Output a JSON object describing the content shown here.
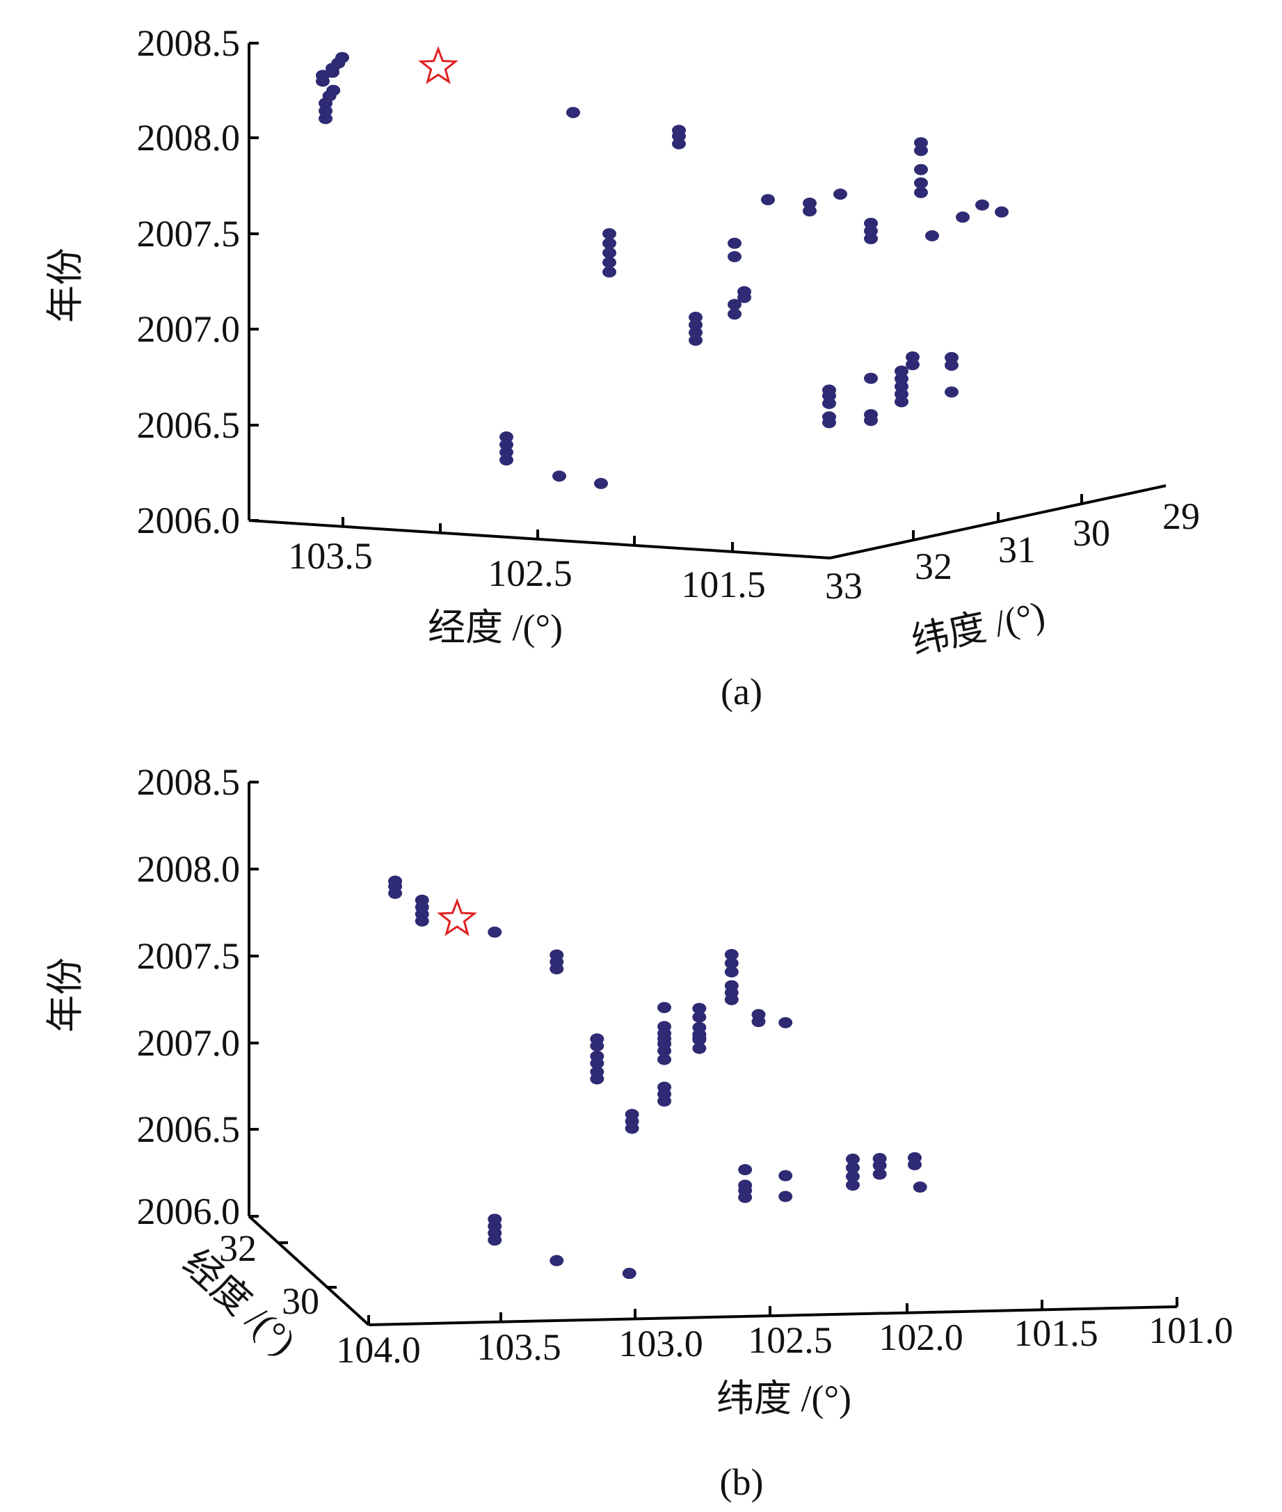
{
  "chart_data": [
    {
      "type": "scatter",
      "caption": "(a)",
      "zlabel": "年份",
      "xlabel": "经度 /(°)",
      "ylabel": "纬度 /(°)",
      "z_ticks": [
        "2006.0",
        "2006.5",
        "2007.0",
        "2007.5",
        "2008.0",
        "2008.5"
      ],
      "x_ticks": [
        "103.5",
        "102.5",
        "101.5"
      ],
      "y_ticks": [
        "33",
        "32",
        "31",
        "30",
        "29"
      ],
      "zlim": [
        2006.0,
        2008.5
      ],
      "marker_color": "#2e2a73",
      "star_color": "#e02020",
      "series": [
        {
          "points": [
            {
              "x": 103.9,
              "y": 31.1,
              "z": 2008.05
            },
            {
              "x": 103.9,
              "y": 31.1,
              "z": 2008.08
            },
            {
              "x": 103.85,
              "y": 31.1,
              "z": 2008.1
            },
            {
              "x": 103.85,
              "y": 31.1,
              "z": 2008.12
            },
            {
              "x": 103.82,
              "y": 31.1,
              "z": 2008.15
            },
            {
              "x": 103.8,
              "y": 31.1,
              "z": 2008.18
            },
            {
              "x": 103.8,
              "y": 31.3,
              "z": 2007.88
            },
            {
              "x": 103.8,
              "y": 31.3,
              "z": 2007.92
            },
            {
              "x": 103.8,
              "y": 31.3,
              "z": 2007.96
            },
            {
              "x": 103.78,
              "y": 31.3,
              "z": 2008.0
            },
            {
              "x": 103.76,
              "y": 31.3,
              "z": 2008.03
            },
            {
              "x": 103.0,
              "y": 30.2,
              "z": 2007.86
            },
            {
              "x": 102.5,
              "y": 30.1,
              "z": 2007.72
            },
            {
              "x": 102.5,
              "y": 30.1,
              "z": 2007.76
            },
            {
              "x": 102.5,
              "y": 30.1,
              "z": 2007.79
            },
            {
              "x": 102.0,
              "y": 30.2,
              "z": 2007.47
            },
            {
              "x": 101.7,
              "y": 30.4,
              "z": 2007.45
            },
            {
              "x": 101.7,
              "y": 30.4,
              "z": 2007.49
            },
            {
              "x": 101.5,
              "y": 30.5,
              "z": 2007.56
            },
            {
              "x": 101.3,
              "y": 30.6,
              "z": 2007.35
            },
            {
              "x": 101.3,
              "y": 30.6,
              "z": 2007.39
            },
            {
              "x": 101.3,
              "y": 30.6,
              "z": 2007.43
            },
            {
              "x": 101.0,
              "y": 30.7,
              "z": 2007.62
            },
            {
              "x": 101.0,
              "y": 30.7,
              "z": 2007.67
            },
            {
              "x": 101.0,
              "y": 30.7,
              "z": 2007.74
            },
            {
              "x": 101.0,
              "y": 30.7,
              "z": 2007.84
            },
            {
              "x": 101.0,
              "y": 30.7,
              "z": 2007.88
            },
            {
              "x": 100.9,
              "y": 30.8,
              "z": 2007.41
            },
            {
              "x": 100.7,
              "y": 30.9,
              "z": 2007.53
            },
            {
              "x": 100.6,
              "y": 30.9,
              "z": 2007.6
            },
            {
              "x": 100.5,
              "y": 30.9,
              "z": 2007.57
            },
            {
              "x": 102.6,
              "y": 30.7,
              "z": 2007.1
            },
            {
              "x": 102.6,
              "y": 30.7,
              "z": 2007.15
            },
            {
              "x": 102.6,
              "y": 30.7,
              "z": 2007.2
            },
            {
              "x": 102.6,
              "y": 30.7,
              "z": 2007.25
            },
            {
              "x": 102.6,
              "y": 30.7,
              "z": 2007.3
            },
            {
              "x": 102.2,
              "y": 30.6,
              "z": 2006.76
            },
            {
              "x": 102.2,
              "y": 30.6,
              "z": 2006.8
            },
            {
              "x": 102.2,
              "y": 30.6,
              "z": 2006.84
            },
            {
              "x": 102.2,
              "y": 30.6,
              "z": 2006.88
            },
            {
              "x": 102.0,
              "y": 30.6,
              "z": 2007.28
            },
            {
              "x": 102.0,
              "y": 30.6,
              "z": 2007.21
            },
            {
              "x": 102.0,
              "y": 30.6,
              "z": 2006.91
            },
            {
              "x": 102.0,
              "y": 30.6,
              "z": 2006.96
            },
            {
              "x": 101.95,
              "y": 30.6,
              "z": 2007.0
            },
            {
              "x": 101.95,
              "y": 30.6,
              "z": 2007.03
            },
            {
              "x": 101.6,
              "y": 30.4,
              "z": 2006.35
            },
            {
              "x": 101.6,
              "y": 30.4,
              "z": 2006.38
            },
            {
              "x": 101.6,
              "y": 30.4,
              "z": 2006.45
            },
            {
              "x": 101.6,
              "y": 30.4,
              "z": 2006.49
            },
            {
              "x": 101.6,
              "y": 30.4,
              "z": 2006.52
            },
            {
              "x": 101.3,
              "y": 30.6,
              "z": 2006.4
            },
            {
              "x": 101.3,
              "y": 30.6,
              "z": 2006.43
            },
            {
              "x": 101.3,
              "y": 30.6,
              "z": 2006.62
            },
            {
              "x": 101.1,
              "y": 30.7,
              "z": 2006.52
            },
            {
              "x": 101.1,
              "y": 30.7,
              "z": 2006.56
            },
            {
              "x": 101.1,
              "y": 30.7,
              "z": 2006.6
            },
            {
              "x": 101.1,
              "y": 30.7,
              "z": 2006.64
            },
            {
              "x": 101.1,
              "y": 30.7,
              "z": 2006.68
            },
            {
              "x": 101.0,
              "y": 30.8,
              "z": 2006.73
            },
            {
              "x": 101.0,
              "y": 30.8,
              "z": 2006.77
            },
            {
              "x": 100.8,
              "y": 30.8,
              "z": 2006.74
            },
            {
              "x": 100.8,
              "y": 30.8,
              "z": 2006.78
            },
            {
              "x": 100.8,
              "y": 30.8,
              "z": 2006.6
            },
            {
              "x": 103.0,
              "y": 31.0,
              "z": 2006.12
            },
            {
              "x": 103.0,
              "y": 31.0,
              "z": 2006.16
            },
            {
              "x": 103.0,
              "y": 31.0,
              "z": 2006.2
            },
            {
              "x": 103.0,
              "y": 31.0,
              "z": 2006.24
            },
            {
              "x": 102.6,
              "y": 31.3,
              "z": 2006.09
            },
            {
              "x": 102.3,
              "y": 31.5,
              "z": 2006.09
            }
          ]
        }
      ],
      "highlight": {
        "marker": "star",
        "x": 103.35,
        "y": 31.0,
        "z": 2008.15
      }
    },
    {
      "type": "scatter",
      "caption": "(b)",
      "zlabel": "年份",
      "xlabel": "纬度 /(°)",
      "ylabel": "经度 /(°)",
      "z_ticks": [
        "2006.0",
        "2006.5",
        "2007.0",
        "2007.5",
        "2008.0",
        "2008.5"
      ],
      "x_ticks": [
        "104.0",
        "103.5",
        "103.0",
        "102.5",
        "102.0",
        "101.5",
        "101.0"
      ],
      "y_ticks": [
        "30",
        "32"
      ],
      "zlim": [
        2006.0,
        2008.5
      ],
      "marker_color": "#2e2a73",
      "star_color": "#e02020",
      "series": [
        {
          "points": [
            {
              "x": 103.85,
              "y": 31.1,
              "z": 2007.87
            },
            {
              "x": 103.85,
              "y": 31.1,
              "z": 2007.91
            },
            {
              "x": 103.85,
              "y": 31.1,
              "z": 2007.94
            },
            {
              "x": 103.75,
              "y": 31.2,
              "z": 2007.71
            },
            {
              "x": 103.75,
              "y": 31.2,
              "z": 2007.75
            },
            {
              "x": 103.75,
              "y": 31.2,
              "z": 2007.79
            },
            {
              "x": 103.75,
              "y": 31.2,
              "z": 2007.83
            },
            {
              "x": 103.48,
              "y": 31.0,
              "z": 2007.63
            },
            {
              "x": 103.25,
              "y": 31.0,
              "z": 2007.41
            },
            {
              "x": 103.25,
              "y": 31.0,
              "z": 2007.45
            },
            {
              "x": 103.25,
              "y": 31.0,
              "z": 2007.49
            },
            {
              "x": 102.6,
              "y": 30.7,
              "z": 2007.36
            },
            {
              "x": 102.6,
              "y": 30.7,
              "z": 2007.41
            },
            {
              "x": 102.6,
              "y": 30.7,
              "z": 2007.46
            },
            {
              "x": 102.6,
              "y": 30.7,
              "z": 2007.2
            },
            {
              "x": 102.6,
              "y": 30.7,
              "z": 2007.24
            },
            {
              "x": 102.6,
              "y": 30.7,
              "z": 2007.28
            },
            {
              "x": 102.5,
              "y": 30.7,
              "z": 2007.07
            },
            {
              "x": 102.5,
              "y": 30.7,
              "z": 2007.11
            },
            {
              "x": 102.4,
              "y": 30.7,
              "z": 2007.06
            },
            {
              "x": 102.85,
              "y": 30.6,
              "z": 2006.95
            },
            {
              "x": 102.85,
              "y": 30.6,
              "z": 2006.98
            },
            {
              "x": 102.85,
              "y": 30.6,
              "z": 2007.01
            },
            {
              "x": 102.85,
              "y": 30.6,
              "z": 2007.05
            },
            {
              "x": 102.85,
              "y": 30.6,
              "z": 2007.16
            },
            {
              "x": 102.72,
              "y": 30.6,
              "z": 2007.1
            },
            {
              "x": 102.72,
              "y": 30.6,
              "z": 2007.15
            },
            {
              "x": 102.72,
              "y": 30.6,
              "z": 2007.04
            },
            {
              "x": 102.72,
              "y": 30.6,
              "z": 2007.0
            },
            {
              "x": 102.72,
              "y": 30.6,
              "z": 2006.97
            },
            {
              "x": 103.1,
              "y": 31.0,
              "z": 2006.77
            },
            {
              "x": 103.1,
              "y": 31.0,
              "z": 2006.81
            },
            {
              "x": 103.1,
              "y": 31.0,
              "z": 2006.86
            },
            {
              "x": 103.1,
              "y": 31.0,
              "z": 2006.9
            },
            {
              "x": 103.1,
              "y": 31.0,
              "z": 2006.96
            },
            {
              "x": 103.1,
              "y": 31.0,
              "z": 2007.0
            },
            {
              "x": 102.97,
              "y": 31.0,
              "z": 2006.48
            },
            {
              "x": 102.97,
              "y": 31.0,
              "z": 2006.52
            },
            {
              "x": 102.97,
              "y": 31.0,
              "z": 2006.56
            },
            {
              "x": 102.85,
              "y": 30.6,
              "z": 2006.62
            },
            {
              "x": 102.85,
              "y": 30.6,
              "z": 2006.66
            },
            {
              "x": 102.85,
              "y": 30.6,
              "z": 2006.7
            },
            {
              "x": 102.85,
              "y": 30.6,
              "z": 2006.86
            },
            {
              "x": 102.85,
              "y": 30.6,
              "z": 2006.91
            },
            {
              "x": 102.72,
              "y": 30.6,
              "z": 2006.92
            },
            {
              "x": 102.72,
              "y": 30.6,
              "z": 2006.98
            },
            {
              "x": 102.55,
              "y": 30.8,
              "z": 2006.06
            },
            {
              "x": 102.55,
              "y": 30.8,
              "z": 2006.1
            },
            {
              "x": 102.55,
              "y": 30.8,
              "z": 2006.13
            },
            {
              "x": 102.55,
              "y": 30.8,
              "z": 2006.22
            },
            {
              "x": 102.4,
              "y": 30.8,
              "z": 2006.06
            },
            {
              "x": 102.4,
              "y": 30.8,
              "z": 2006.18
            },
            {
              "x": 102.15,
              "y": 30.9,
              "z": 2006.12
            },
            {
              "x": 102.15,
              "y": 30.9,
              "z": 2006.17
            },
            {
              "x": 102.15,
              "y": 30.9,
              "z": 2006.22
            },
            {
              "x": 102.15,
              "y": 30.9,
              "z": 2006.27
            },
            {
              "x": 102.05,
              "y": 30.9,
              "z": 2006.18
            },
            {
              "x": 102.05,
              "y": 30.9,
              "z": 2006.23
            },
            {
              "x": 102.05,
              "y": 30.9,
              "z": 2006.27
            },
            {
              "x": 101.92,
              "y": 30.9,
              "z": 2006.27
            },
            {
              "x": 101.92,
              "y": 30.9,
              "z": 2006.23
            },
            {
              "x": 101.9,
              "y": 30.9,
              "z": 2006.1
            },
            {
              "x": 103.48,
              "y": 30.3,
              "z": 2005.83
            },
            {
              "x": 103.48,
              "y": 30.3,
              "z": 2005.87
            },
            {
              "x": 103.48,
              "y": 30.3,
              "z": 2005.91
            },
            {
              "x": 103.48,
              "y": 30.3,
              "z": 2005.95
            },
            {
              "x": 103.25,
              "y": 30.5,
              "z": 2005.71
            },
            {
              "x": 102.98,
              "y": 30.6,
              "z": 2005.63
            }
          ]
        }
      ],
      "highlight": {
        "marker": "star",
        "x": 103.62,
        "y": 31.0,
        "z": 2007.71
      }
    }
  ]
}
